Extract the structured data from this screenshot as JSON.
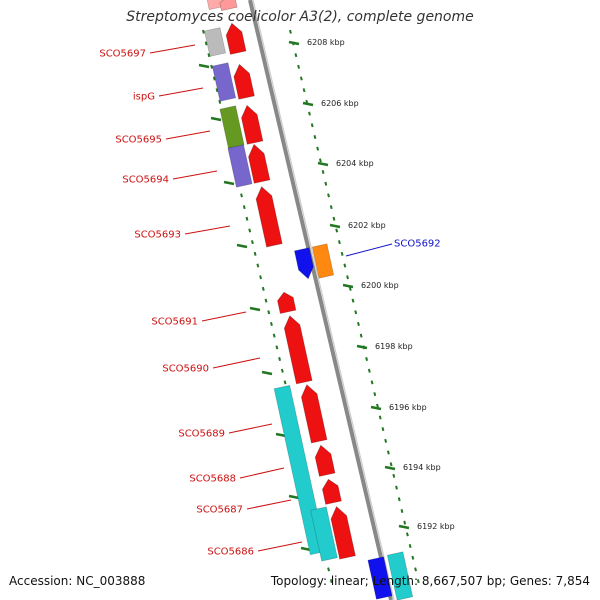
{
  "title": "Streptomyces coelicolor A3(2), complete genome",
  "footer": {
    "accession": "Accession: NC_003888",
    "summary": "Topology: linear; Length: 8,667,507 bp; Genes: 7,854"
  },
  "colors": {
    "red": "#ee1111",
    "blue": "#1111ee",
    "orange": "#ff8811",
    "cyan": "#22cccc",
    "purple": "#7766cc",
    "olive": "#669922",
    "grey": "#bbbbbb",
    "tick_green": "#227722"
  },
  "scale_ticks": [
    "6208 kbp",
    "6206 kbp",
    "6204 kbp",
    "6202 kbp",
    "6200 kbp",
    "6198 kbp",
    "6196 kbp",
    "6194 kbp",
    "6192 kbp"
  ],
  "gene_labels": [
    {
      "id": "SCO5697",
      "color": "#cc1111"
    },
    {
      "id": "ispG",
      "color": "#cc1111"
    },
    {
      "id": "SCO5695",
      "color": "#cc1111"
    },
    {
      "id": "SCO5694",
      "color": "#cc1111"
    },
    {
      "id": "SCO5693",
      "color": "#cc1111"
    },
    {
      "id": "SCO5692",
      "color": "#1111cc"
    },
    {
      "id": "SCO5691",
      "color": "#cc1111"
    },
    {
      "id": "SCO5690",
      "color": "#cc1111"
    },
    {
      "id": "SCO5689",
      "color": "#cc1111"
    },
    {
      "id": "SCO5688",
      "color": "#cc1111"
    },
    {
      "id": "SCO5687",
      "color": "#cc1111"
    },
    {
      "id": "SCO5686",
      "color": "#cc1111"
    }
  ]
}
